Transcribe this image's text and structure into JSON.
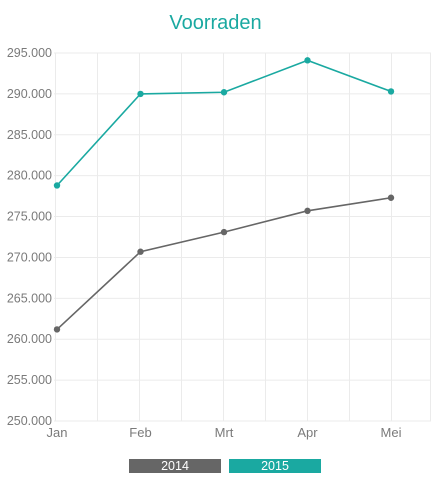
{
  "chart_data": {
    "type": "line",
    "title": "Voorraden",
    "categories": [
      "Jan",
      "Feb",
      "Mrt",
      "Apr",
      "Mei"
    ],
    "series": [
      {
        "name": "2014",
        "color": "#666666",
        "values": [
          261200,
          270700,
          273100,
          275700,
          277300
        ]
      },
      {
        "name": "2015",
        "color": "#1aa9a1",
        "values": [
          278800,
          290000,
          290200,
          294100,
          290300
        ]
      }
    ],
    "ylim": [
      250000,
      295000
    ],
    "yticks": [
      "295.000",
      "290.000",
      "285.000",
      "280.000",
      "275.000",
      "270.000",
      "265.000",
      "260.000",
      "255.000",
      "250.000"
    ],
    "xlabel": "",
    "ylabel": "",
    "grid": true,
    "legend": "bottom-center",
    "title_color": "#1aa9a1"
  }
}
